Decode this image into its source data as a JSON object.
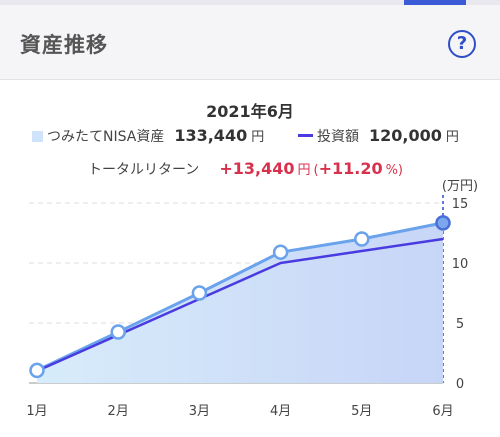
{
  "header": {
    "title": "資産推移",
    "help_label": "?"
  },
  "summary": {
    "date": "2021年6月",
    "asset_label": "つみたてNISA資産",
    "asset_value": "133,440",
    "invest_label": "投資額",
    "invest_value": "120,000",
    "currency": "円",
    "return_label": "トータルリターン",
    "return_value": "+13,440",
    "return_open": "(",
    "return_pct": "+11.20",
    "return_pct_unit": "%)"
  },
  "colors": {
    "asset_line": "#6aa3ec",
    "asset_fill": "#cfe3fb",
    "invest_line": "#4a3be0",
    "return": "#d8314d",
    "accent": "#2f4fc9"
  },
  "chart_data": {
    "type": "area",
    "categories": [
      "1月",
      "2月",
      "3月",
      "4月",
      "5月",
      "6月"
    ],
    "series": [
      {
        "name": "つみたてNISA資産",
        "values": [
          1.05,
          4.25,
          7.5,
          10.9,
          12.0,
          13.344
        ]
      },
      {
        "name": "投資額",
        "values": [
          1.0,
          4.0,
          7.0,
          10.0,
          11.0,
          12.0
        ]
      }
    ],
    "yunit": "(万円)",
    "ylim": [
      0,
      15
    ],
    "yticks": [
      0,
      5,
      10,
      15
    ],
    "grid": true
  }
}
